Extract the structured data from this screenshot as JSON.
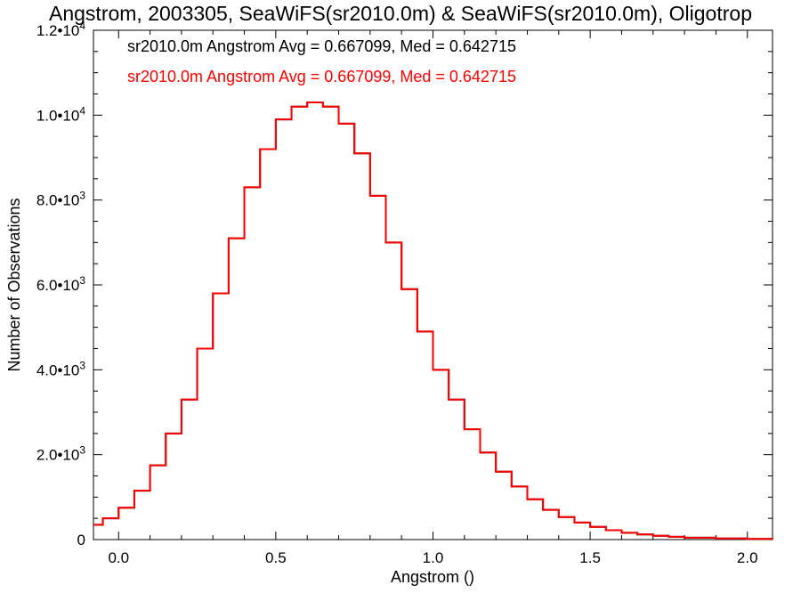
{
  "chart_data": {
    "type": "step",
    "title": "Angstrom, 2003305, SeaWiFS(sr2010.0m) & SeaWiFS(sr2010.0m), Oligotrop",
    "xlabel": "Angstrom ()",
    "ylabel": "Number of Observations",
    "xlim": [
      -0.08,
      2.08
    ],
    "ylim": [
      0,
      12000
    ],
    "x_ticks": [
      0.0,
      0.5,
      1.0,
      1.5,
      2.0
    ],
    "x_tick_labels": [
      "0.0",
      "0.5",
      "1.0",
      "1.5",
      "2.0"
    ],
    "y_ticks": [
      0,
      2000,
      4000,
      6000,
      8000,
      10000,
      12000
    ],
    "y_tick_labels": [
      {
        "mantissa": "0",
        "exp": ""
      },
      {
        "mantissa": "2.0•10",
        "exp": "3"
      },
      {
        "mantissa": "4.0•10",
        "exp": "3"
      },
      {
        "mantissa": "6.0•10",
        "exp": "3"
      },
      {
        "mantissa": "8.0•10",
        "exp": "3"
      },
      {
        "mantissa": "1.0•10",
        "exp": "4"
      },
      {
        "mantissa": "1.2•10",
        "exp": "4"
      }
    ],
    "annotations": [
      {
        "text": "sr2010.0m Angstrom Avg = 0.667099, Med = 0.642715",
        "color": "#000000"
      },
      {
        "text": "sr2010.0m Angstrom Avg = 0.667099, Med = 0.642715",
        "color": "#ff0000"
      }
    ],
    "series": [
      {
        "color": "#000000",
        "ref": "histogram"
      },
      {
        "color": "#ff0000",
        "ref": "histogram"
      }
    ],
    "histogram": {
      "x": [
        -0.08,
        -0.05,
        0.0,
        0.05,
        0.1,
        0.15,
        0.2,
        0.25,
        0.3,
        0.35,
        0.4,
        0.45,
        0.5,
        0.55,
        0.6,
        0.65,
        0.7,
        0.75,
        0.8,
        0.85,
        0.9,
        0.95,
        1.0,
        1.05,
        1.1,
        1.15,
        1.2,
        1.25,
        1.3,
        1.35,
        1.4,
        1.45,
        1.5,
        1.55,
        1.6,
        1.65,
        1.7,
        1.75,
        1.8,
        1.9,
        2.0,
        2.08
      ],
      "y": [
        350,
        500,
        750,
        1150,
        1750,
        2500,
        3300,
        4500,
        5800,
        7100,
        8300,
        9200,
        9900,
        10200,
        10300,
        10200,
        9800,
        9100,
        8100,
        7000,
        5900,
        4900,
        4000,
        3300,
        2600,
        2050,
        1600,
        1250,
        950,
        700,
        530,
        400,
        300,
        220,
        160,
        120,
        90,
        65,
        45,
        25,
        15,
        10
      ]
    }
  }
}
